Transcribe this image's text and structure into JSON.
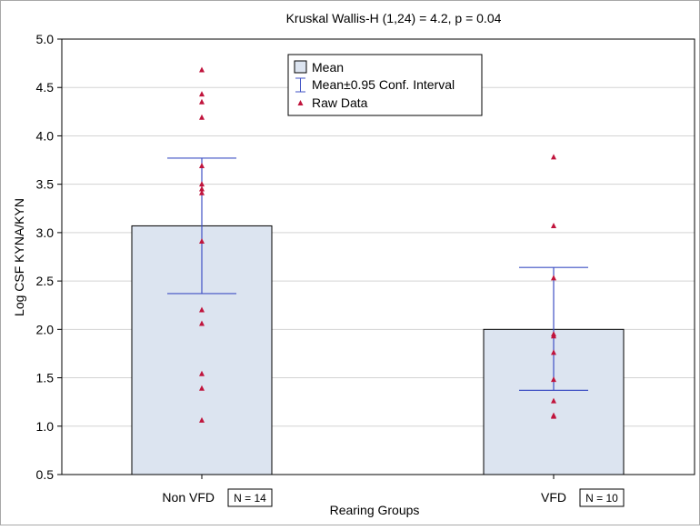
{
  "chart_data": {
    "type": "bar",
    "title": "Kruskal Wallis-H (1,24) = 4.2, p = 0.04",
    "xlabel": "Rearing Groups",
    "ylabel": "Log CSF KYNA/KYN",
    "ylim": [
      0.5,
      5.0
    ],
    "yticks": [
      0.5,
      1.0,
      1.5,
      2.0,
      2.5,
      3.0,
      3.5,
      4.0,
      4.5,
      5.0
    ],
    "ytick_labels": [
      "0.5",
      "1.0",
      "1.5",
      "2.0",
      "2.5",
      "3.0",
      "3.5",
      "4.0",
      "4.5",
      "5.0"
    ],
    "grid": true,
    "legend_position": "top-center",
    "categories": [
      "Non VFD",
      "VFD"
    ],
    "n_labels": [
      "N = 14",
      "N = 10"
    ],
    "means": [
      3.07,
      2.0
    ],
    "ci_lower": [
      2.37,
      1.37
    ],
    "ci_upper": [
      3.77,
      2.64
    ],
    "raw_data": [
      [
        4.68,
        4.43,
        4.35,
        4.19,
        3.69,
        3.5,
        3.45,
        3.41,
        2.91,
        2.2,
        2.06,
        1.54,
        1.39,
        1.06
      ],
      [
        3.78,
        3.07,
        2.53,
        1.95,
        1.93,
        1.76,
        1.48,
        1.26,
        1.11,
        1.1
      ]
    ],
    "legend": {
      "mean": "Mean",
      "ci": "Mean±0.95 Conf. Interval",
      "raw": "Raw Data"
    },
    "colors": {
      "bar_fill": "#dce4f0",
      "bar_stroke": "#000000",
      "error": "#3f51c4",
      "raw": "#c0143c",
      "grid": "#d3d3d3"
    }
  }
}
